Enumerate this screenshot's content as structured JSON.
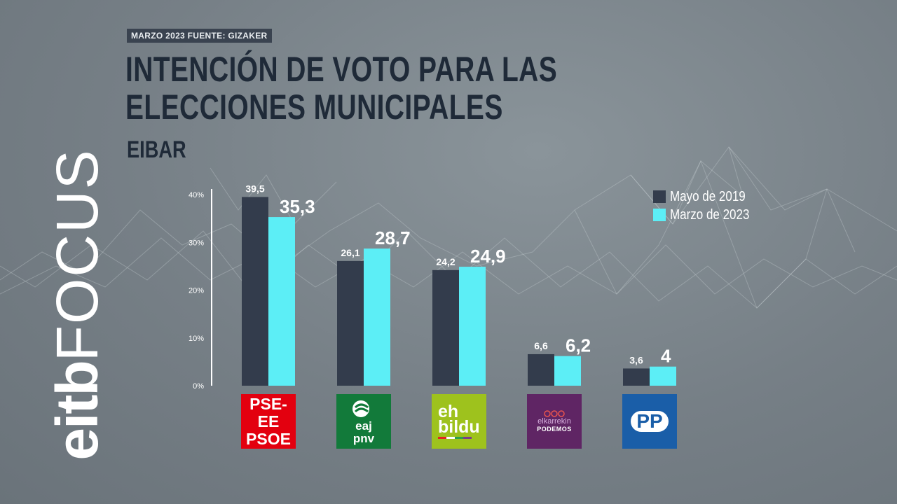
{
  "header": {
    "tag": "MARZO 2023   FUENTE: GIZAKER",
    "title": "INTENCIÓN DE VOTO PARA LAS ELECCIONES MUNICIPALES",
    "subtitle": "EIBAR"
  },
  "brand": {
    "part1": "eitb",
    "part2": "FOCUS"
  },
  "colors": {
    "series_2019": "#333c4c",
    "series_2023": "#5ceef6",
    "title": "#1f2a38"
  },
  "chart_data": {
    "type": "bar",
    "title": "INTENCIÓN DE VOTO PARA LAS ELECCIONES MUNICIPALES",
    "subtitle": "EIBAR",
    "categories": [
      "PSE-EE PSOE",
      "EAJ-PNV",
      "EH Bildu",
      "Elkarrekin Podemos",
      "PP"
    ],
    "series": [
      {
        "name": "Mayo de 2019",
        "values": [
          39.5,
          26.1,
          24.2,
          6.6,
          3.6
        ],
        "labels": [
          "39,5",
          "26,1",
          "24,2",
          "6,6",
          "3,6"
        ]
      },
      {
        "name": "Marzo de 2023",
        "values": [
          35.3,
          28.7,
          24.9,
          6.2,
          4.0
        ],
        "labels": [
          "35,3",
          "28,7",
          "24,9",
          "6,2",
          "4"
        ]
      }
    ],
    "yticks": [
      "0%",
      "10%",
      "20%",
      "30%",
      "40%"
    ],
    "ylim": [
      0,
      40
    ],
    "legend_position": "top-right",
    "grid": false
  },
  "logos": {
    "psoe": {
      "line1": "PSE-EE",
      "line2": "PSOE"
    },
    "pnv": {
      "line1": "eaj",
      "line2": "pnv"
    },
    "bildu": {
      "line1": "eh",
      "line2": "bildu"
    },
    "podemos": {
      "line1": "elkarrekin",
      "line2": "PODEMOS"
    },
    "pp": {
      "label": "PP"
    }
  }
}
